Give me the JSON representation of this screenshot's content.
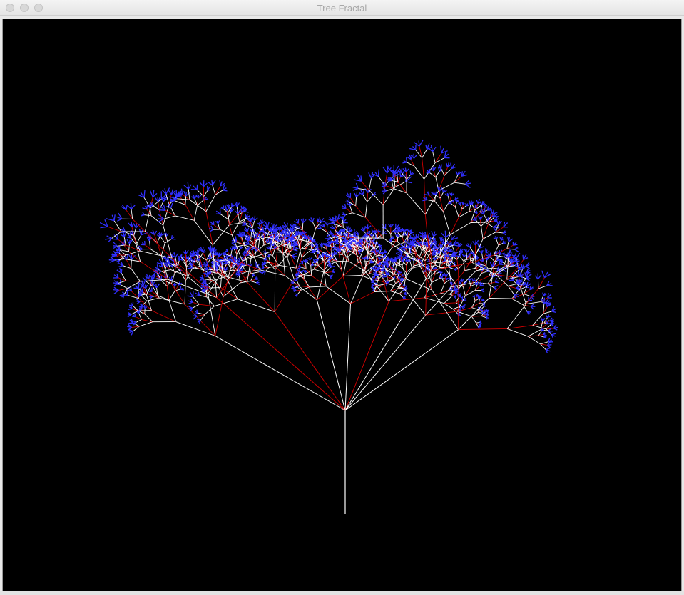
{
  "window": {
    "title": "Tree Fractal"
  },
  "colors": {
    "background": "#000000",
    "trunk_branch": "#ffffff",
    "secondary_branch": "#cc0000",
    "leaf_tip": "#3030ff",
    "title_text": "#a8a8a8"
  },
  "icons": {
    "close": "traffic-light-close",
    "minimize": "traffic-light-minimize",
    "zoom": "traffic-light-zoom"
  }
}
